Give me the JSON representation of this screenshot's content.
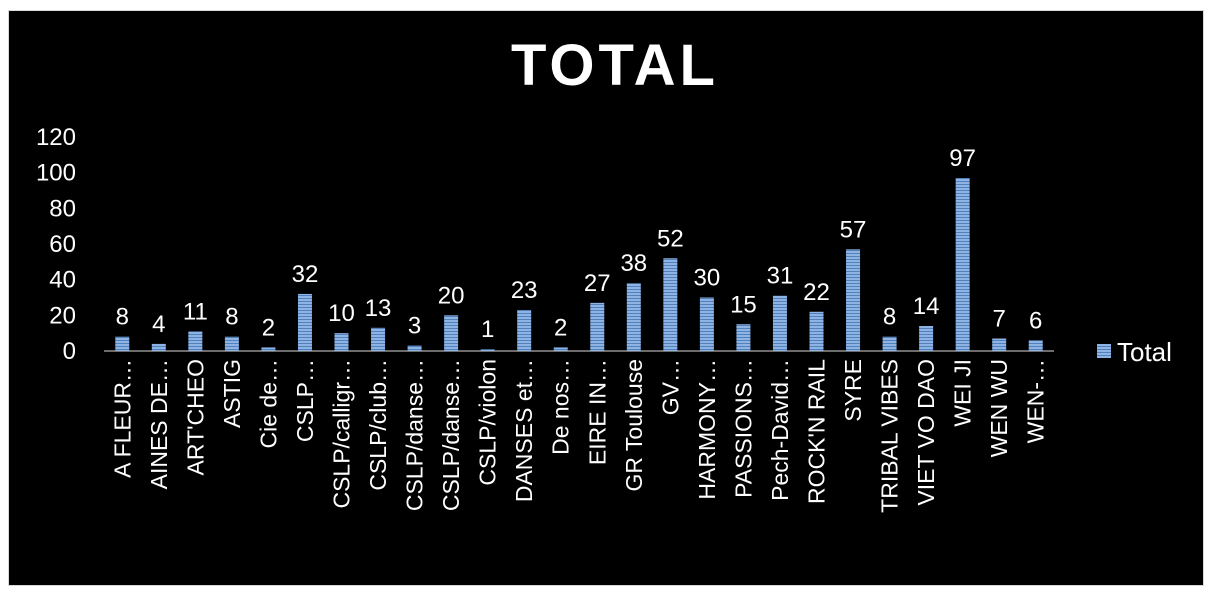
{
  "chart_data": {
    "type": "bar",
    "title": "TOTAL",
    "xlabel": "",
    "ylabel": "",
    "ylim": [
      0,
      120
    ],
    "yticks": [
      "0",
      "20",
      "40",
      "60",
      "80",
      "100",
      "120"
    ],
    "grid": false,
    "legend_position": "right",
    "categories": [
      "A FLEUR…",
      "AINES DE…",
      "ART'CHEO",
      "ASTIG",
      "Cie de…",
      "CSLP…",
      "CSLP/calligr…",
      "CSLP/club…",
      "CSLP/danse…",
      "CSLP/danse…",
      "CSLP/violon",
      "DANSES et…",
      "De nos…",
      "EIRE IN…",
      "GR Toulouse",
      "GV…",
      "HARMONY…",
      "PASSIONS…",
      "Pech-David…",
      "ROCK'N RAIL",
      "SYRE",
      "TRIBAL VIBES",
      "VIET VO DAO",
      "WEI JI",
      "WEN WU",
      "WEN-…"
    ],
    "series": [
      {
        "name": "Total",
        "color": "#7aa6d8",
        "values": [
          8,
          4,
          11,
          8,
          2,
          32,
          10,
          13,
          3,
          20,
          1,
          23,
          2,
          27,
          38,
          52,
          30,
          15,
          31,
          22,
          57,
          8,
          14,
          97,
          7,
          6
        ]
      }
    ]
  }
}
